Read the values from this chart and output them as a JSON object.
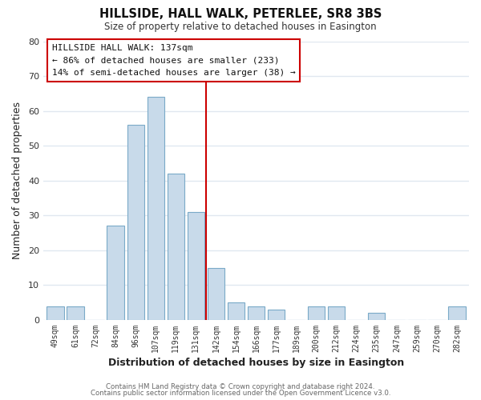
{
  "title": "HILLSIDE, HALL WALK, PETERLEE, SR8 3BS",
  "subtitle": "Size of property relative to detached houses in Easington",
  "xlabel": "Distribution of detached houses by size in Easington",
  "ylabel": "Number of detached properties",
  "bar_color": "#c8daea",
  "bar_edge_color": "#7aaac8",
  "background_color": "#ffffff",
  "grid_color": "#e0e8f0",
  "categories": [
    "49sqm",
    "61sqm",
    "72sqm",
    "84sqm",
    "96sqm",
    "107sqm",
    "119sqm",
    "131sqm",
    "142sqm",
    "154sqm",
    "166sqm",
    "177sqm",
    "189sqm",
    "200sqm",
    "212sqm",
    "224sqm",
    "235sqm",
    "247sqm",
    "259sqm",
    "270sqm",
    "282sqm"
  ],
  "values": [
    4,
    4,
    0,
    27,
    56,
    64,
    42,
    31,
    15,
    5,
    4,
    3,
    0,
    4,
    4,
    0,
    2,
    0,
    0,
    0,
    4
  ],
  "vline_x": 7.5,
  "vline_color": "#cc0000",
  "annotation_title": "HILLSIDE HALL WALK: 137sqm",
  "annotation_line1": "← 86% of detached houses are smaller (233)",
  "annotation_line2": "14% of semi-detached houses are larger (38) →",
  "ylim": [
    0,
    80
  ],
  "yticks": [
    0,
    10,
    20,
    30,
    40,
    50,
    60,
    70,
    80
  ],
  "footer1": "Contains HM Land Registry data © Crown copyright and database right 2024.",
  "footer2": "Contains public sector information licensed under the Open Government Licence v3.0."
}
